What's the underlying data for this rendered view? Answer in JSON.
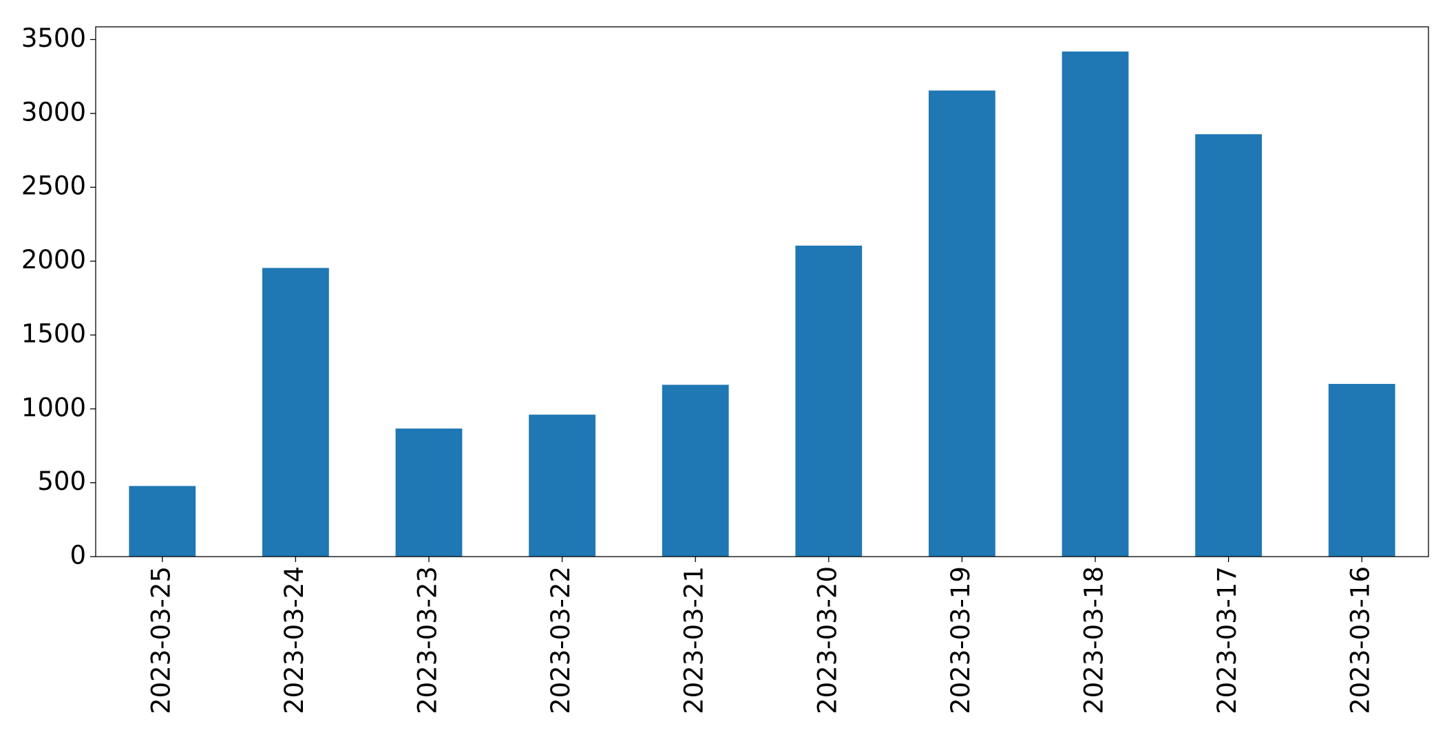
{
  "chart_data": {
    "type": "bar",
    "categories": [
      "2023-03-25",
      "2023-03-24",
      "2023-03-23",
      "2023-03-22",
      "2023-03-21",
      "2023-03-20",
      "2023-03-19",
      "2023-03-18",
      "2023-03-17",
      "2023-03-16"
    ],
    "values": [
      478,
      1954,
      867,
      961,
      1163,
      2105,
      3155,
      3419,
      2859,
      1169
    ],
    "color": "#1f77b4",
    "ylim": [
      0,
      3586
    ],
    "yticks": [
      0,
      500,
      1000,
      1500,
      2000,
      2500,
      3000,
      3500
    ],
    "grid": false
  }
}
